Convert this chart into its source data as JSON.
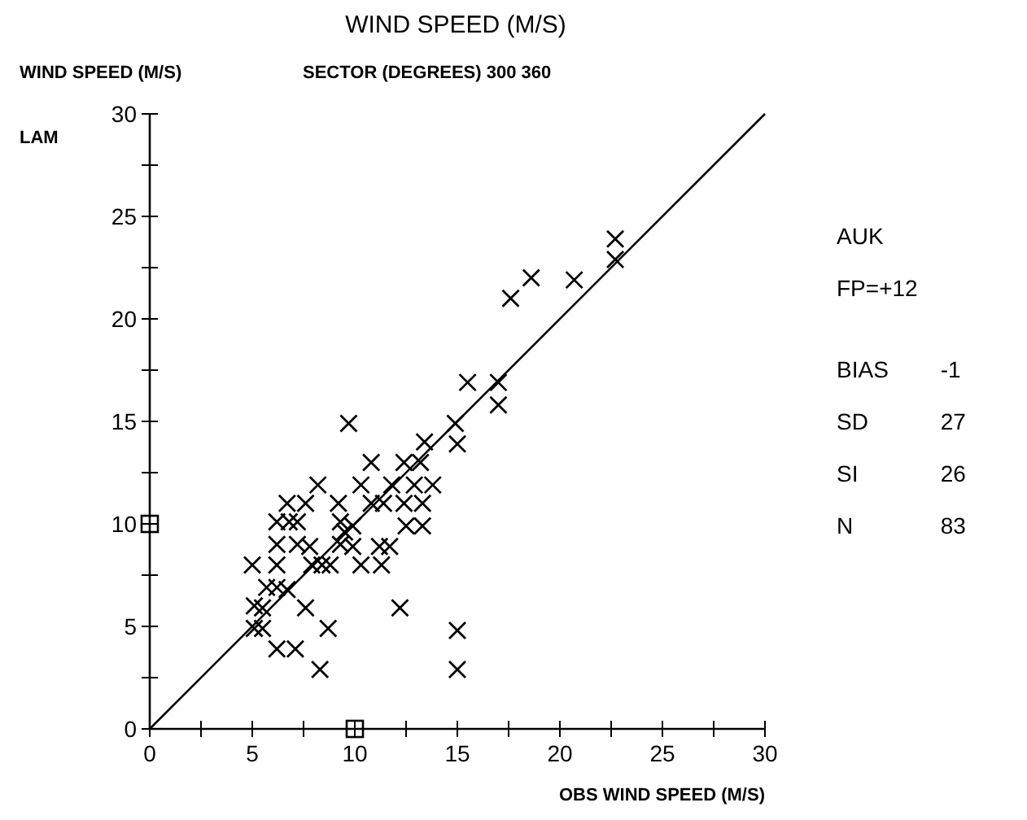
{
  "chart_data": {
    "type": "scatter",
    "title": "WIND SPEED (M/S)",
    "subtitle": "SECTOR (DEGREES) 300 360",
    "xlabel": "OBS WIND SPEED (M/S)",
    "ylabel": "WIND SPEED (M/S)",
    "annotations": [
      "LAM",
      "AUK",
      "FP=+12",
      "BIAS -1",
      "SD 27",
      "SI 26",
      "N 83"
    ],
    "xlim": [
      0,
      30
    ],
    "ylim": [
      0,
      30
    ],
    "xticks": [
      0,
      {
        "value": 2.5,
        "label": null
      },
      5,
      {
        "value": 7.5,
        "label": null
      },
      10,
      {
        "value": 12.5,
        "label": null
      },
      15,
      {
        "value": 17.5,
        "label": null
      },
      20,
      {
        "value": 22.5,
        "label": null
      },
      25,
      {
        "value": 27.5,
        "label": null
      },
      30
    ],
    "yticks": [
      0,
      {
        "value": 2.5,
        "label": null
      },
      5,
      {
        "value": 7.5,
        "label": null
      },
      10,
      {
        "value": 12.5,
        "label": null
      },
      15,
      {
        "value": 17.5,
        "label": null
      },
      20,
      {
        "value": 22.5,
        "label": null
      },
      25,
      {
        "value": 27.5,
        "label": null
      },
      30
    ],
    "grid": false,
    "series": [
      {
        "marker": "cross",
        "color": "#000000",
        "x": [
          9.7,
          14.9,
          15,
          13.4,
          10.8,
          12.4,
          13.2,
          8.2,
          10.3,
          11.8,
          12.9,
          13.8,
          6.7,
          7.6,
          9.2,
          10.8,
          11.4,
          12.4,
          13.3,
          6.2,
          6.8,
          7.2,
          9.3,
          9.9,
          9.5,
          12.5,
          13.3,
          6.2,
          7.2,
          7.8,
          9.3,
          9.9,
          11.2,
          11.7,
          5,
          6.2,
          7.9,
          8.4,
          8.8,
          10.3,
          11.3,
          5.7,
          6.2,
          6.7,
          5.1,
          5.5,
          7.6,
          12.2,
          5.1,
          5.5,
          8.7,
          15,
          6.2,
          7.1,
          8.3,
          15,
          17.6,
          18.6,
          20.7,
          22.7,
          22.7,
          15.5,
          17,
          17
        ],
        "values": [
          14.9,
          14.9,
          13.9,
          14,
          13,
          13,
          13,
          11.9,
          11.9,
          11.9,
          11.9,
          11.9,
          11,
          11,
          11,
          11,
          11,
          11,
          11,
          10.1,
          10.1,
          10.1,
          10.1,
          9.9,
          9.6,
          9.9,
          9.9,
          9,
          9,
          8.9,
          9,
          8.9,
          8.9,
          8.9,
          8,
          8,
          8,
          8,
          8,
          8,
          8,
          6.9,
          6.9,
          6.8,
          6,
          5.9,
          5.9,
          5.9,
          4.9,
          4.9,
          4.9,
          4.8,
          3.9,
          3.9,
          2.9,
          2.9,
          21,
          22,
          21.9,
          22.9,
          23.9,
          16.9,
          16.9,
          15.8
        ]
      },
      {
        "marker": "square",
        "color": "#000000",
        "x": [
          0,
          10
        ],
        "values": [
          10,
          0
        ]
      },
      {
        "type": "line",
        "line_style": "solid",
        "color": "#000000",
        "x": [
          0,
          30
        ],
        "values": [
          0,
          30
        ]
      }
    ]
  }
}
